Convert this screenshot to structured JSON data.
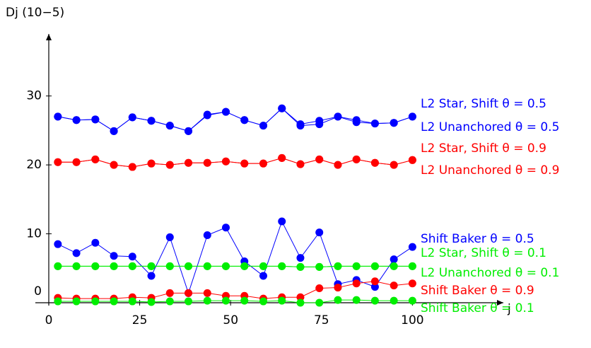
{
  "chart_data": {
    "type": "line",
    "y_label": "Dj (10−5)",
    "x_label": "j",
    "x": [
      2.5,
      7.6,
      12.8,
      17.9,
      23.0,
      28.2,
      33.3,
      38.4,
      43.6,
      48.7,
      53.8,
      59.0,
      64.1,
      69.2,
      74.4,
      79.5,
      84.6,
      89.7,
      94.9,
      100
    ],
    "xlim": [
      0,
      125
    ],
    "xticks": [
      0,
      25,
      50,
      75,
      100
    ],
    "ylim": [
      0,
      39
    ],
    "yticks": [
      0,
      10,
      20,
      30
    ],
    "series": [
      {
        "name": "L2 Star, Shift θ = 0.5",
        "color": "#0000ff",
        "values": [
          27.0,
          26.5,
          26.6,
          24.9,
          26.9,
          26.4,
          25.7,
          24.9,
          27.3,
          27.7,
          26.5,
          25.7,
          28.2,
          25.9,
          26.4,
          27.0,
          26.5,
          26.0,
          26.1,
          27.0
        ]
      },
      {
        "name": "L2 Unanchored θ = 0.5",
        "color": "#0000ff",
        "values": [
          27.0,
          26.5,
          26.6,
          24.9,
          26.9,
          26.4,
          25.7,
          24.9,
          27.2,
          27.7,
          26.5,
          25.7,
          28.2,
          25.7,
          25.9,
          27.0,
          26.2,
          26.0,
          26.1,
          27.0
        ]
      },
      {
        "name": "L2 Star, Shift θ = 0.9",
        "color": "#ff0000",
        "values": [
          20.4,
          20.4,
          20.8,
          20.0,
          19.7,
          20.2,
          20.0,
          20.3,
          20.3,
          20.5,
          20.2,
          20.2,
          21.0,
          20.1,
          20.8,
          20.0,
          20.8,
          20.3,
          20.0,
          20.7
        ]
      },
      {
        "name": "L2 Unanchored θ = 0.9",
        "color": "#ff0000",
        "values": [
          20.4,
          20.4,
          20.8,
          20.0,
          19.7,
          20.2,
          20.0,
          20.3,
          20.3,
          20.5,
          20.2,
          20.2,
          21.0,
          20.1,
          20.8,
          20.0,
          20.8,
          20.3,
          20.0,
          20.7
        ]
      },
      {
        "name": "Shift Baker θ = 0.5",
        "color": "#0000ff",
        "values": [
          8.5,
          7.2,
          8.7,
          6.8,
          6.7,
          3.9,
          9.5,
          1.4,
          9.8,
          10.9,
          6.0,
          3.9,
          11.8,
          6.5,
          10.2,
          2.7,
          3.3,
          2.3,
          6.3,
          8.1
        ]
      },
      {
        "name": "L2 Star, Shift θ = 0.1",
        "color": "#00ee00",
        "values": [
          5.3,
          5.3,
          5.3,
          5.3,
          5.3,
          5.3,
          5.3,
          5.3,
          5.3,
          5.3,
          5.3,
          5.3,
          5.3,
          5.2,
          5.2,
          5.3,
          5.3,
          5.3,
          5.3,
          5.3
        ]
      },
      {
        "name": "L2 Unanchored θ = 0.1",
        "color": "#00ee00",
        "values": [
          5.3,
          5.3,
          5.3,
          5.3,
          5.3,
          5.3,
          5.3,
          5.3,
          5.3,
          5.3,
          5.3,
          5.3,
          5.3,
          5.2,
          5.2,
          5.3,
          5.3,
          5.3,
          5.3,
          5.3
        ]
      },
      {
        "name": "Shift Baker θ = 0.9",
        "color": "#ff0000",
        "values": [
          0.7,
          0.6,
          0.6,
          0.6,
          0.8,
          0.7,
          1.4,
          1.4,
          1.4,
          1.0,
          1.0,
          0.6,
          0.8,
          0.8,
          2.1,
          2.2,
          2.8,
          3.1,
          2.5,
          2.8
        ]
      },
      {
        "name": "Shift Baker θ = 0.1",
        "color": "#00ee00",
        "values": [
          0.2,
          0.2,
          0.2,
          0.2,
          0.2,
          0.1,
          0.2,
          0.2,
          0.3,
          0.3,
          0.3,
          0.2,
          0.3,
          0.0,
          0.0,
          0.4,
          0.4,
          0.3,
          0.3,
          0.3
        ]
      }
    ]
  }
}
